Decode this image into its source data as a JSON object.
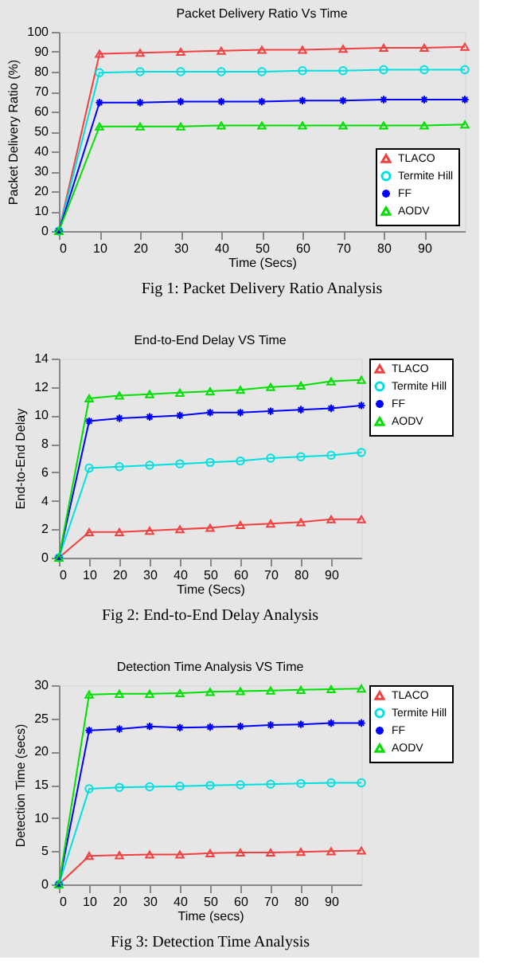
{
  "chart_data": [
    {
      "type": "line",
      "title": "Packet Delivery Ratio Vs Time",
      "xlabel": "Time (Secs)",
      "ylabel": "Packet Delivery Ratio (%)",
      "annotations": [
        "Fig 1: Packet Delivery Ratio Analysis"
      ],
      "x": [
        0,
        10,
        20,
        30,
        40,
        50,
        60,
        70,
        80,
        90,
        100
      ],
      "xlim": [
        0,
        100
      ],
      "xticks": [
        0,
        10,
        20,
        30,
        40,
        50,
        60,
        70,
        80,
        90
      ],
      "ylim": [
        0,
        100
      ],
      "yticks": [
        0,
        10,
        20,
        30,
        40,
        50,
        60,
        70,
        80,
        90,
        100
      ],
      "grid": false,
      "legend": "bottom right",
      "series": [
        {
          "name": "TLACO",
          "color": "#f04040",
          "marker": "triangle",
          "values": [
            0,
            89,
            89.5,
            90,
            90.5,
            91,
            91,
            91.5,
            92,
            92,
            92.5
          ]
        },
        {
          "name": "Termite Hill",
          "color": "#00e0e0",
          "marker": "circle",
          "values": [
            0,
            79.5,
            80,
            80,
            80,
            80,
            80.5,
            80.5,
            81,
            81,
            81
          ]
        },
        {
          "name": "FF",
          "color": "#0000ff",
          "marker": "cross",
          "values": [
            0,
            64.5,
            64.5,
            65,
            65,
            65,
            65.5,
            65.5,
            66,
            66,
            66
          ]
        },
        {
          "name": "AODV",
          "color": "#00e000",
          "marker": "triangle",
          "values": [
            0,
            52.5,
            52.5,
            52.5,
            53,
            53,
            53,
            53,
            53,
            53,
            53.5
          ]
        }
      ]
    },
    {
      "type": "line",
      "title": "End-to-End Delay VS Time",
      "xlabel": "Time (Secs)",
      "ylabel": "End-to-End Delay",
      "annotations": [
        "Fig 2: End-to-End Delay Analysis"
      ],
      "x": [
        0,
        10,
        20,
        30,
        40,
        50,
        60,
        70,
        80,
        90,
        100
      ],
      "xlim": [
        0,
        100
      ],
      "xticks": [
        0,
        10,
        20,
        30,
        40,
        50,
        60,
        70,
        80,
        90
      ],
      "ylim": [
        0,
        14
      ],
      "yticks": [
        0,
        2,
        4,
        6,
        8,
        10,
        12,
        14
      ],
      "grid": false,
      "legend": "right",
      "series": [
        {
          "name": "TLACO",
          "color": "#f04040",
          "marker": "triangle",
          "values": [
            0,
            1.8,
            1.8,
            1.9,
            2.0,
            2.1,
            2.3,
            2.4,
            2.5,
            2.7,
            2.7
          ]
        },
        {
          "name": "Termite Hill",
          "color": "#00e0e0",
          "marker": "circle",
          "values": [
            0,
            6.3,
            6.4,
            6.5,
            6.6,
            6.7,
            6.8,
            7.0,
            7.1,
            7.2,
            7.4
          ]
        },
        {
          "name": "FF",
          "color": "#0000ff",
          "marker": "cross",
          "values": [
            0,
            9.6,
            9.8,
            9.9,
            10.0,
            10.2,
            10.2,
            10.3,
            10.4,
            10.5,
            10.7
          ]
        },
        {
          "name": "AODV",
          "color": "#00e000",
          "marker": "triangle",
          "values": [
            0,
            11.2,
            11.4,
            11.5,
            11.6,
            11.7,
            11.8,
            12.0,
            12.1,
            12.4,
            12.5
          ]
        }
      ]
    },
    {
      "type": "line",
      "title": "Detection Time Analysis VS Time",
      "xlabel": "Time (secs)",
      "ylabel": "Detection Time (secs)",
      "annotations": [
        "Fig 3: Detection Time Analysis"
      ],
      "x": [
        0,
        10,
        20,
        30,
        40,
        50,
        60,
        70,
        80,
        90,
        100
      ],
      "xlim": [
        0,
        100
      ],
      "xticks": [
        0,
        10,
        20,
        30,
        40,
        50,
        60,
        70,
        80,
        90
      ],
      "ylim": [
        0,
        30
      ],
      "yticks": [
        0,
        5,
        10,
        15,
        20,
        25,
        30
      ],
      "grid": false,
      "legend": "right",
      "series": [
        {
          "name": "TLACO",
          "color": "#f04040",
          "marker": "triangle",
          "values": [
            0,
            4.3,
            4.4,
            4.5,
            4.5,
            4.7,
            4.8,
            4.8,
            4.9,
            5.0,
            5.1
          ]
        },
        {
          "name": "Termite Hill",
          "color": "#00e0e0",
          "marker": "circle",
          "values": [
            0,
            14.4,
            14.6,
            14.7,
            14.8,
            14.9,
            15.0,
            15.1,
            15.2,
            15.3,
            15.3
          ]
        },
        {
          "name": "FF",
          "color": "#0000ff",
          "marker": "cross",
          "values": [
            0,
            23.2,
            23.4,
            23.8,
            23.6,
            23.7,
            23.8,
            24.0,
            24.1,
            24.3,
            24.3
          ]
        },
        {
          "name": "AODV",
          "color": "#00e000",
          "marker": "triangle",
          "values": [
            0,
            28.6,
            28.7,
            28.7,
            28.8,
            29.0,
            29.1,
            29.2,
            29.3,
            29.4,
            29.5
          ]
        }
      ]
    }
  ]
}
